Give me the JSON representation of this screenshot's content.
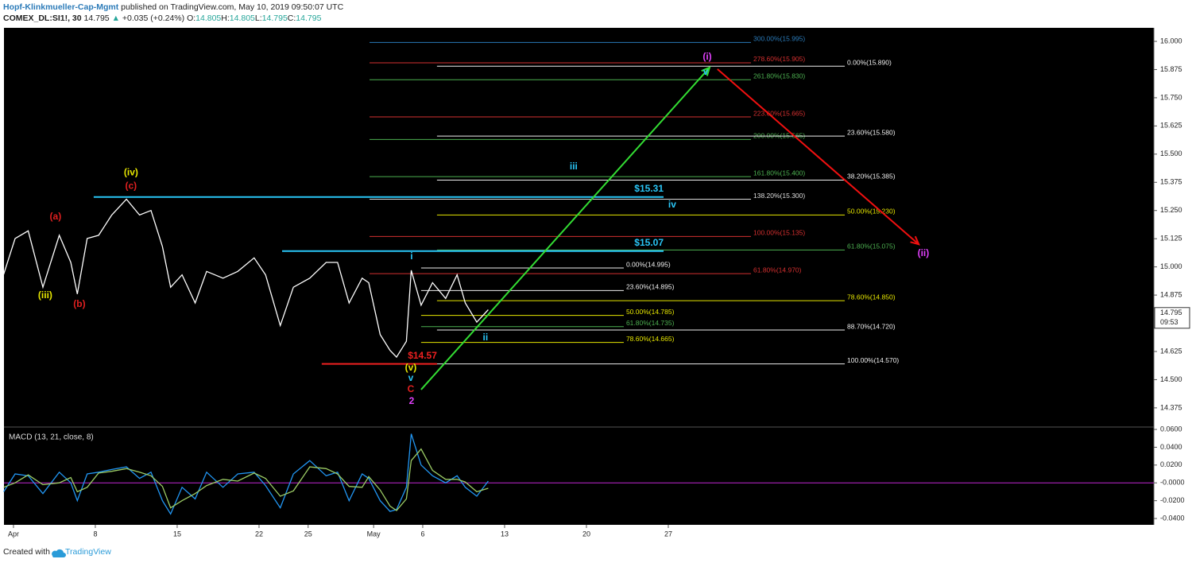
{
  "header": {
    "author": "Hopf-Klinkmueller-Cap-Mgmt",
    "published": "published on TradingView.com, May 10, 2019 09:50:07 UTC",
    "symbol": "COMEX_DL:SI1!, 30",
    "last": "14.795",
    "change": "+0.035 (+0.24%)",
    "ohlc": [
      {
        "key": "O:",
        "value": "14.805"
      },
      {
        "key": "H:",
        "value": "14.805"
      },
      {
        "key": "L:",
        "value": "14.795"
      },
      {
        "key": "C:",
        "value": "14.795"
      }
    ]
  },
  "chart_data": [
    {
      "type": "line",
      "x": [
        -0.6,
        0.1,
        0.9,
        1.8,
        2.8,
        3.5,
        3.9,
        4.5,
        5.2,
        6.0,
        6.9,
        7.7,
        8.4,
        9.1,
        9.6,
        10.3,
        11.1,
        11.8,
        12.8,
        13.7,
        14.7,
        15.4,
        16.3,
        17.1,
        18.1,
        19.1,
        19.8,
        20.5,
        21.3,
        21.7,
        22.4,
        23.0,
        23.4,
        24.0,
        24.3,
        24.9,
        25.6,
        26.4,
        27.1,
        27.6,
        28.3,
        29.0
      ],
      "series": [
        {
          "color": "#ffffff",
          "values": [
            14.967,
            15.126,
            15.16,
            14.91,
            15.14,
            15.02,
            14.88,
            15.126,
            15.14,
            15.23,
            15.3,
            15.23,
            15.25,
            15.09,
            14.91,
            14.965,
            14.84,
            14.98,
            14.95,
            14.98,
            15.04,
            14.965,
            14.74,
            14.91,
            14.95,
            15.02,
            15.02,
            14.84,
            14.95,
            14.93,
            14.7,
            14.63,
            14.6,
            14.67,
            14.985,
            14.83,
            14.93,
            14.86,
            14.965,
            14.84,
            14.755,
            14.81
          ]
        }
      ],
      "xlim": [
        -0.58,
        69.66
      ],
      "ylim": [
        14.29,
        16.06
      ],
      "yticks": [
        14.375,
        {
          "value": 14.5,
          "label": "14.500"
        },
        14.625,
        {
          "value": 14.75,
          "label": "14.750"
        },
        14.875,
        {
          "value": 15.0,
          "label": "15.000"
        },
        15.125,
        {
          "value": 15.25,
          "label": "15.250"
        },
        15.375,
        {
          "value": 15.5,
          "label": "15.500"
        },
        15.625,
        {
          "value": 15.75,
          "label": "15.750"
        },
        15.875,
        {
          "value": 16.0,
          "label": "16.000"
        }
      ],
      "price_marker": {
        "value": 14.795,
        "time_left": "09:53"
      },
      "fib_levels": [
        {
          "label": "300.00%(15.995)",
          "value": 15.995,
          "color": "#2a7ab8",
          "x": [
            21.75,
            45.05
          ]
        },
        {
          "label": "278.60%(15.905)",
          "value": 15.905,
          "color": "#d32f2f",
          "x": [
            21.75,
            45.05
          ]
        },
        {
          "label": "261.80%(15.830)",
          "value": 15.83,
          "color": "#4caf50",
          "x": [
            21.75,
            45.05
          ]
        },
        {
          "label": "223.60%(15.665)",
          "value": 15.665,
          "color": "#d32f2f",
          "x": [
            21.75,
            45.05
          ]
        },
        {
          "label": "200.00%(15.565)",
          "value": 15.565,
          "color": "#4caf50",
          "x": [
            21.75,
            45.05
          ]
        },
        {
          "label": "161.80%(15.400)",
          "value": 15.4,
          "color": "#4caf50",
          "x": [
            21.75,
            45.05
          ]
        },
        {
          "label": "138.20%(15.300)",
          "value": 15.3,
          "color": "#dddddd",
          "x": [
            21.75,
            45.05
          ]
        },
        {
          "label": "100.00%(15.135)",
          "value": 15.135,
          "color": "#d32f2f",
          "x": [
            21.75,
            45.05
          ]
        },
        {
          "label": "61.80%(14.970)",
          "value": 14.97,
          "color": "#d32f2f",
          "x": [
            21.75,
            45.05
          ]
        },
        {
          "label": "0.00%(15.890)",
          "value": 15.89,
          "color": "#eeeeee",
          "x": [
            25.87,
            50.78
          ]
        },
        {
          "label": "23.60%(15.580)",
          "value": 15.58,
          "color": "#eeeeee",
          "x": [
            25.87,
            50.78
          ]
        },
        {
          "label": "38.20%(15.385)",
          "value": 15.385,
          "color": "#eeeeee",
          "x": [
            25.87,
            50.78
          ]
        },
        {
          "label": "50.00%(15.230)",
          "value": 15.23,
          "color": "#e6e600",
          "x": [
            25.87,
            50.78
          ]
        },
        {
          "label": "61.80%(15.075)",
          "value": 15.075,
          "color": "#4caf50",
          "x": [
            25.87,
            50.78
          ]
        },
        {
          "label": "78.60%(14.850)",
          "value": 14.85,
          "color": "#e6e600",
          "x": [
            25.87,
            50.78
          ]
        },
        {
          "label": "88.70%(14.720)",
          "value": 14.72,
          "color": "#eeeeee",
          "x": [
            25.87,
            50.78
          ]
        },
        {
          "label": "100.00%(14.570)",
          "value": 14.57,
          "color": "#eeeeee",
          "x": [
            25.87,
            50.78
          ]
        },
        {
          "label": "0.00%(14.995)",
          "value": 14.995,
          "color": "#eeeeee",
          "x": [
            24.9,
            37.28
          ]
        },
        {
          "label": "23.60%(14.895)",
          "value": 14.895,
          "color": "#eeeeee",
          "x": [
            24.9,
            37.28
          ]
        },
        {
          "label": "50.00%(14.785)",
          "value": 14.785,
          "color": "#e6e600",
          "x": [
            24.9,
            37.28
          ]
        },
        {
          "label": "61.80%(14.735)",
          "value": 14.735,
          "color": "#4caf50",
          "x": [
            24.9,
            37.28
          ]
        },
        {
          "label": "78.60%(14.665)",
          "value": 14.665,
          "color": "#e6e600",
          "x": [
            24.9,
            37.28
          ]
        }
      ],
      "price_lines": [
        {
          "label": "$15.31",
          "value": 15.31,
          "color": "#29c5f6",
          "x": [
            4.9,
            39.71
          ]
        },
        {
          "label": "$15.07",
          "value": 15.07,
          "color": "#29c5f6",
          "x": [
            16.41,
            39.71
          ]
        },
        {
          "label": "$14.57",
          "value": 14.57,
          "color": "#f02020",
          "x": [
            18.83,
            25.87
          ]
        }
      ],
      "arrows": [
        {
          "color": "#33dd33",
          "x": [
            24.9,
            42.52
          ],
          "y": [
            14.456,
            15.884
          ]
        },
        {
          "color": "#f01010",
          "x": [
            43.0,
            55.3
          ],
          "y": [
            15.877,
            15.1
          ]
        }
      ],
      "wave_labels": [
        {
          "text": "(iii)",
          "color": "#e6e600",
          "x": 1.94,
          "y": 14.872
        },
        {
          "text": "(a)",
          "color": "#e02020",
          "x": 2.57,
          "y": 15.221
        },
        {
          "text": "(b)",
          "color": "#e02020",
          "x": 4.03,
          "y": 14.833
        },
        {
          "text": "(iv)",
          "color": "#e6e600",
          "x": 7.18,
          "y": 15.418
        },
        {
          "text": "(c)",
          "color": "#e02020",
          "x": 7.18,
          "y": 15.358
        },
        {
          "text": "i",
          "color": "#29c5f6",
          "x": 24.32,
          "y": 15.045
        },
        {
          "text": "ii",
          "color": "#29c5f6",
          "x": 28.83,
          "y": 14.685
        },
        {
          "text": "iii",
          "color": "#29c5f6",
          "x": 34.22,
          "y": 15.443
        },
        {
          "text": "iv",
          "color": "#29c5f6",
          "x": 40.24,
          "y": 15.274
        },
        {
          "text": "v",
          "color": "#29c5f6",
          "x": 42.28,
          "y": 15.863
        },
        {
          "text": "(i)",
          "color": "#e040fb",
          "x": 42.38,
          "y": 15.93
        },
        {
          "text": "(ii)",
          "color": "#e040fb",
          "x": 55.58,
          "y": 15.059
        },
        {
          "text": "(v)",
          "color": "#e6e600",
          "x": 24.27,
          "y": 14.551
        },
        {
          "text": "v",
          "color": "#29c5f6",
          "x": 24.27,
          "y": 14.505
        },
        {
          "text": "C",
          "color": "#e02020",
          "x": 24.27,
          "y": 14.456
        },
        {
          "text": "2",
          "color": "#e040fb",
          "x": 24.32,
          "y": 14.403
        }
      ]
    },
    {
      "type": "line",
      "title": "MACD (13, 21, close, 8)",
      "x": [
        -0.6,
        0.1,
        0.9,
        1.8,
        2.8,
        3.5,
        3.9,
        4.5,
        5.2,
        6.0,
        6.9,
        7.7,
        8.4,
        9.1,
        9.6,
        10.3,
        11.1,
        11.8,
        12.8,
        13.7,
        14.7,
        15.4,
        16.3,
        17.1,
        18.1,
        19.1,
        19.8,
        20.5,
        21.3,
        21.7,
        22.4,
        23.0,
        23.4,
        24.0,
        24.3,
        24.9,
        25.6,
        26.4,
        27.1,
        27.6,
        28.3,
        29.0
      ],
      "series": [
        {
          "color": "#2196f3",
          "values": [
            -0.01,
            0.01,
            0.008,
            -0.012,
            0.012,
            0.0,
            -0.02,
            0.01,
            0.012,
            0.015,
            0.018,
            0.005,
            0.012,
            -0.02,
            -0.035,
            -0.005,
            -0.018,
            0.012,
            -0.005,
            0.01,
            0.012,
            -0.003,
            -0.028,
            0.01,
            0.025,
            0.008,
            0.012,
            -0.02,
            0.01,
            0.005,
            -0.02,
            -0.032,
            -0.03,
            -0.005,
            0.055,
            0.02,
            0.008,
            0.0,
            0.008,
            -0.005,
            -0.015,
            0.002
          ]
        },
        {
          "color": "#9ccc65",
          "values": [
            -0.005,
            0.0,
            0.009,
            -0.002,
            0.0,
            0.006,
            -0.01,
            -0.005,
            0.011,
            0.013,
            0.016,
            0.012,
            0.008,
            -0.004,
            -0.028,
            -0.02,
            -0.012,
            -0.003,
            0.004,
            0.002,
            0.011,
            0.005,
            -0.015,
            -0.009,
            0.018,
            0.016,
            0.01,
            -0.004,
            -0.005,
            0.007,
            -0.008,
            -0.026,
            -0.031,
            -0.018,
            0.025,
            0.038,
            0.014,
            0.004,
            0.004,
            0.001,
            -0.01,
            -0.006
          ]
        }
      ],
      "zero_line_color": "#c026d3",
      "xlim": [
        -0.58,
        69.66
      ],
      "xticks": [
        {
          "value": 0,
          "label": "Apr"
        },
        {
          "value": 5,
          "label": "8"
        },
        {
          "value": 10,
          "label": "15"
        },
        {
          "value": 15,
          "label": "22"
        },
        {
          "value": 18,
          "label": "25"
        },
        {
          "value": 22,
          "label": "May"
        },
        {
          "value": 25,
          "label": "6"
        },
        {
          "value": 30,
          "label": "13"
        },
        {
          "value": 35,
          "label": "20"
        },
        {
          "value": 40,
          "label": "27"
        }
      ],
      "ylim": [
        -0.0471,
        0.0627
      ],
      "yticks": [
        {
          "value": -0.04,
          "label": "-0.0400"
        },
        {
          "value": -0.02,
          "label": "-0.0200"
        },
        {
          "value": 0,
          "label": "-0.0000"
        },
        {
          "value": 0.02,
          "label": "0.0200"
        },
        {
          "value": 0.04,
          "label": "0.0400"
        },
        {
          "value": 0.06,
          "label": "0.0600"
        }
      ]
    }
  ],
  "footer": {
    "created": "Created with",
    "brand": "TradingView"
  }
}
